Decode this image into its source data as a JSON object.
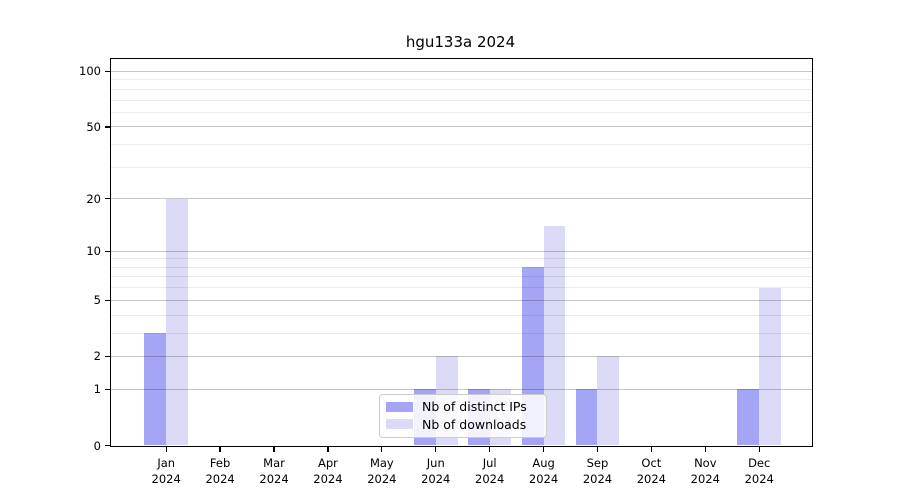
{
  "title": "hgu133a 2024",
  "chart_data": {
    "type": "bar",
    "title": "hgu133a 2024",
    "categories": [
      "Jan 2024",
      "Feb 2024",
      "Mar 2024",
      "Apr 2024",
      "May 2024",
      "Jun 2024",
      "Jul 2024",
      "Aug 2024",
      "Sep 2024",
      "Oct 2024",
      "Nov 2024",
      "Dec 2024"
    ],
    "series": [
      {
        "name": "Nb of distinct IPs",
        "color": "#a5a5f5",
        "values": [
          3,
          0,
          0,
          0,
          0,
          1,
          1,
          8,
          1,
          0,
          0,
          1
        ]
      },
      {
        "name": "Nb of downloads",
        "color": "#dbdbf8",
        "values": [
          20,
          0,
          0,
          0,
          0,
          2,
          1,
          14,
          2,
          0,
          0,
          6
        ]
      }
    ],
    "xlabel": "",
    "ylabel": "",
    "yscale": "log1p",
    "ylim": [
      0,
      118
    ],
    "yticks": [
      0,
      1,
      2,
      5,
      10,
      20,
      50,
      100
    ],
    "minor_yticks": [
      3,
      4,
      6,
      7,
      8,
      9,
      30,
      40,
      60,
      70,
      80,
      90
    ],
    "grid": "horizontal",
    "legend_position": "lower center"
  },
  "colors": {
    "bar_distinct_ips": "#a5a5f5",
    "bar_downloads": "#dbdbf8",
    "major_grid": "#c8c8c8",
    "minor_grid": "#ebebeb",
    "axis": "#000000",
    "legend_border": "#cccccc"
  }
}
